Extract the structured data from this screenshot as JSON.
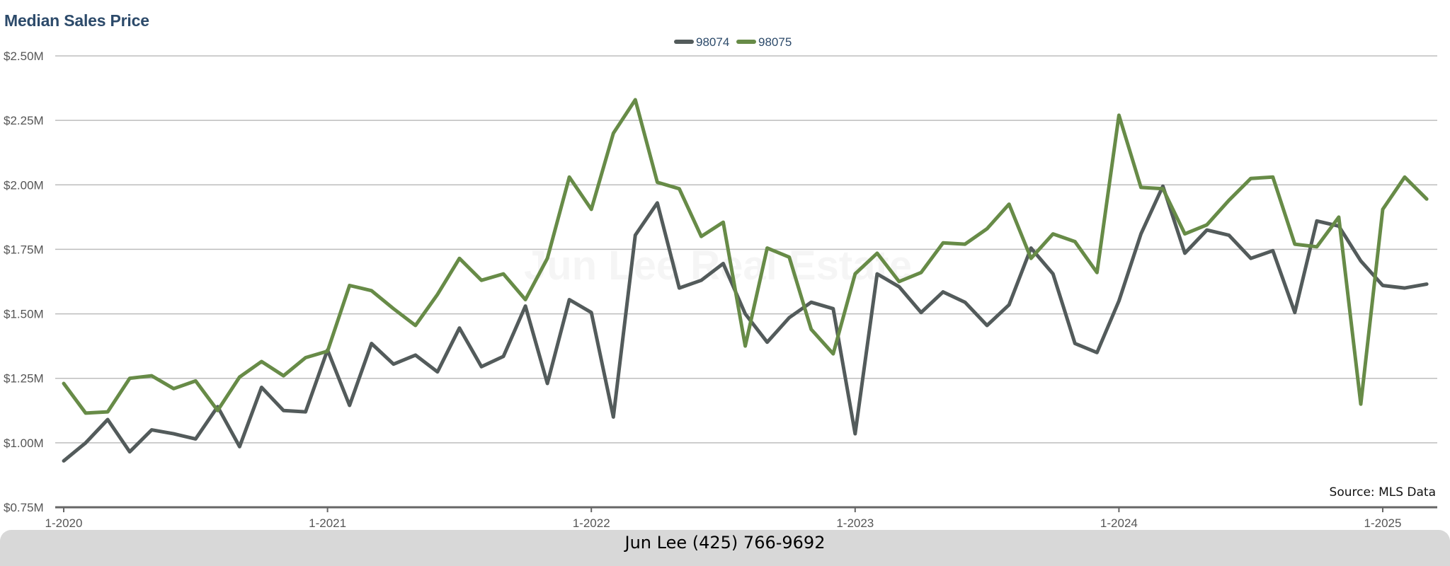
{
  "colors": {
    "s98074": "#535b5b",
    "s98075": "#678b47",
    "title": "#2c4a6a",
    "grid": "#bdbdbd",
    "axis": "#666666",
    "tick_label": "#555555"
  },
  "watermark": "Jun Lee Real Estate",
  "source": "Source: MLS Data",
  "footer": "Jun Lee (425) 766-9692",
  "chart_data": {
    "type": "line",
    "title": "Median Sales Price",
    "xlabel": "",
    "ylabel": "",
    "legend_position": "top-center",
    "grid": true,
    "x_start": "1-2020",
    "x_interval": "monthly",
    "x_tick_labels": [
      "1-2020",
      "1-2021",
      "1-2022",
      "1-2023",
      "1-2024",
      "1-2025"
    ],
    "y_tick_labels": [
      "$0.75M",
      "$1.00M",
      "$1.25M",
      "$1.50M",
      "$1.75M",
      "$2.00M",
      "$2.25M",
      "$2.50M"
    ],
    "y_ticks": [
      0.75,
      1.0,
      1.25,
      1.5,
      1.75,
      2.0,
      2.25,
      2.5
    ],
    "ylim": [
      0.75,
      2.5
    ],
    "y_unit": "$M",
    "series": [
      {
        "name": "98074",
        "color": "#535b5b",
        "values": [
          0.93,
          1.0,
          1.09,
          0.965,
          1.05,
          1.035,
          1.015,
          1.14,
          0.985,
          1.215,
          1.125,
          1.12,
          1.36,
          1.145,
          1.385,
          1.305,
          1.34,
          1.275,
          1.445,
          1.295,
          1.335,
          1.53,
          1.23,
          1.555,
          1.505,
          1.1,
          1.805,
          1.93,
          1.6,
          1.63,
          1.695,
          1.5,
          1.39,
          1.485,
          1.545,
          1.52,
          1.035,
          1.655,
          1.605,
          1.505,
          1.585,
          1.545,
          1.455,
          1.535,
          1.755,
          1.655,
          1.385,
          1.35,
          1.55,
          1.81,
          1.995,
          1.735,
          1.825,
          1.805,
          1.715,
          1.745,
          1.505,
          1.86,
          1.84,
          1.705,
          1.61,
          1.6,
          1.615
        ]
      },
      {
        "name": "98075",
        "color": "#678b47",
        "values": [
          1.23,
          1.115,
          1.12,
          1.25,
          1.26,
          1.21,
          1.24,
          1.125,
          1.255,
          1.315,
          1.26,
          1.33,
          1.355,
          1.61,
          1.59,
          1.52,
          1.455,
          1.575,
          1.715,
          1.63,
          1.655,
          1.555,
          1.715,
          2.03,
          1.905,
          2.2,
          2.33,
          2.01,
          1.985,
          1.8,
          1.855,
          1.375,
          1.755,
          1.72,
          1.44,
          1.345,
          1.655,
          1.735,
          1.625,
          1.66,
          1.775,
          1.77,
          1.83,
          1.925,
          1.715,
          1.81,
          1.78,
          1.66,
          2.27,
          1.99,
          1.985,
          1.81,
          1.845,
          1.94,
          2.025,
          2.03,
          1.77,
          1.76,
          1.875,
          1.15,
          1.905,
          2.03,
          1.945
        ]
      }
    ]
  }
}
